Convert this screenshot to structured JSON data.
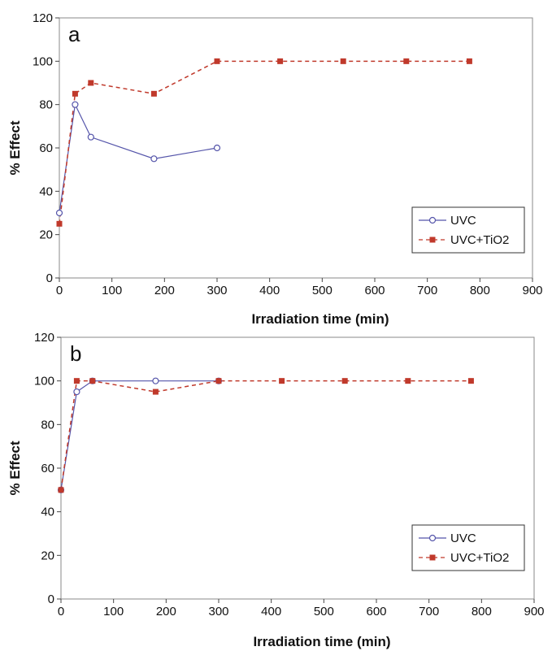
{
  "chart_data": [
    {
      "type": "line",
      "panel_label": "a",
      "xlabel": "Irradiation time (min)",
      "ylabel": "% Effect",
      "xlim": [
        0,
        900
      ],
      "ylim": [
        0,
        120
      ],
      "xticks": [
        0,
        100,
        200,
        300,
        400,
        500,
        600,
        700,
        800,
        900
      ],
      "yticks": [
        0,
        20,
        40,
        60,
        80,
        100,
        120
      ],
      "legend_position": "lower-right",
      "series": [
        {
          "name": "UVC",
          "color": "#5555aa",
          "line": "solid",
          "marker": "open-circle",
          "x": [
            0,
            30,
            60,
            180,
            300
          ],
          "y": [
            30,
            80,
            65,
            55,
            60
          ]
        },
        {
          "name": "UVC+TiO2",
          "color": "#c0392b",
          "line": "dashed",
          "marker": "filled-square",
          "x": [
            0,
            30,
            60,
            180,
            300,
            420,
            540,
            660,
            780
          ],
          "y": [
            25,
            85,
            90,
            85,
            100,
            100,
            100,
            100,
            100
          ]
        }
      ]
    },
    {
      "type": "line",
      "panel_label": "b",
      "xlabel": "Irradiation time (min)",
      "ylabel": "% Effect",
      "xlim": [
        0,
        900
      ],
      "ylim": [
        0,
        120
      ],
      "xticks": [
        0,
        100,
        200,
        300,
        400,
        500,
        600,
        700,
        800,
        900
      ],
      "yticks": [
        0,
        20,
        40,
        60,
        80,
        100,
        120
      ],
      "legend_position": "lower-right",
      "series": [
        {
          "name": "UVC",
          "color": "#5555aa",
          "line": "solid",
          "marker": "open-circle",
          "x": [
            0,
            30,
            60,
            180,
            300
          ],
          "y": [
            50,
            95,
            100,
            100,
            100
          ]
        },
        {
          "name": "UVC+TiO2",
          "color": "#c0392b",
          "line": "dashed",
          "marker": "filled-square",
          "x": [
            0,
            30,
            60,
            180,
            300,
            420,
            540,
            660,
            780
          ],
          "y": [
            50,
            100,
            100,
            95,
            100,
            100,
            100,
            100,
            100
          ]
        }
      ]
    }
  ]
}
